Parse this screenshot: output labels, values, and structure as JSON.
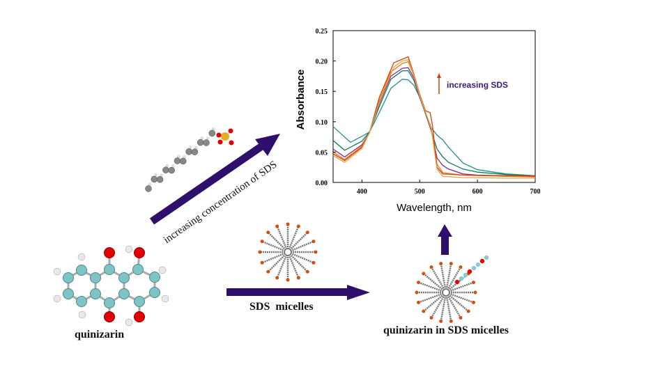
{
  "labels": {
    "quinizarin": "quinizarin",
    "sds_micelles": "SDS  micelles",
    "quinizarin_in_micelles": "quinizarin in SDS micelles",
    "diagonal_arrow": "increasing concentration of SDS"
  },
  "colors": {
    "arrow": "#2e0f6b",
    "carbon": "#7fc4c4",
    "oxygen": "#e00000",
    "hydrogen": "#e8e8e8",
    "sulfur": "#e0b020"
  },
  "chart_data": {
    "type": "line",
    "xlabel": "Wavelength, nm",
    "ylabel": "Absorbance",
    "xlim": [
      350,
      700
    ],
    "ylim": [
      0,
      0.25
    ],
    "xticks": [
      400,
      500,
      600,
      700
    ],
    "yticks": [
      "0.00",
      "0.05",
      "0.10",
      "0.15",
      "0.20",
      "0.25"
    ],
    "annotation": "increasing SDS",
    "grid": false,
    "series": [
      {
        "color": "#1f8f8f",
        "x": [
          350,
          380,
          400,
          413,
          430,
          450,
          470,
          480,
          490,
          500,
          510,
          520,
          530,
          540,
          550,
          575,
          600,
          650,
          700
        ],
        "y": [
          0.092,
          0.066,
          0.076,
          0.083,
          0.115,
          0.155,
          0.17,
          0.169,
          0.16,
          0.14,
          0.115,
          0.09,
          0.078,
          0.07,
          0.058,
          0.032,
          0.021,
          0.014,
          0.011
        ]
      },
      {
        "color": "#0f7a5a",
        "x": [
          350,
          370,
          400,
          413,
          430,
          450,
          470,
          480,
          490,
          500,
          510,
          520,
          530,
          540,
          550,
          575,
          600,
          650,
          700
        ],
        "y": [
          0.069,
          0.053,
          0.068,
          0.083,
          0.125,
          0.17,
          0.184,
          0.184,
          0.168,
          0.14,
          0.113,
          0.085,
          0.055,
          0.042,
          0.033,
          0.022,
          0.017,
          0.013,
          0.011
        ]
      },
      {
        "color": "#8a2a8a",
        "x": [
          350,
          370,
          400,
          413,
          430,
          450,
          470,
          480,
          490,
          500,
          510,
          520,
          530,
          540,
          550,
          575,
          600,
          650,
          700
        ],
        "y": [
          0.055,
          0.042,
          0.062,
          0.082,
          0.13,
          0.175,
          0.188,
          0.189,
          0.172,
          0.14,
          0.115,
          0.085,
          0.04,
          0.028,
          0.022,
          0.014,
          0.012,
          0.011,
          0.01
        ]
      },
      {
        "color": "#e08020",
        "x": [
          350,
          370,
          400,
          413,
          430,
          450,
          470,
          480,
          490,
          500,
          510,
          520,
          530,
          540,
          575,
          650,
          700
        ],
        "y": [
          0.05,
          0.038,
          0.06,
          0.082,
          0.135,
          0.182,
          0.196,
          0.199,
          0.175,
          0.142,
          0.115,
          0.09,
          0.03,
          0.016,
          0.012,
          0.01,
          0.009
        ]
      },
      {
        "color": "#d04010",
        "x": [
          350,
          370,
          400,
          413,
          430,
          455,
          470,
          480,
          490,
          500,
          510,
          518,
          522,
          530,
          540,
          575,
          650,
          700
        ],
        "y": [
          0.047,
          0.036,
          0.058,
          0.082,
          0.14,
          0.197,
          0.203,
          0.207,
          0.178,
          0.145,
          0.118,
          0.115,
          0.095,
          0.025,
          0.014,
          0.012,
          0.011,
          0.011
        ]
      },
      {
        "color": "#f0a040",
        "x": [
          350,
          370,
          400,
          413,
          430,
          455,
          470,
          480,
          490,
          500,
          510,
          520,
          530,
          540,
          575,
          650,
          700
        ],
        "y": [
          0.044,
          0.033,
          0.056,
          0.082,
          0.132,
          0.19,
          0.2,
          0.202,
          0.176,
          0.143,
          0.116,
          0.088,
          0.022,
          0.01,
          0.008,
          0.007,
          0.007
        ]
      }
    ]
  }
}
